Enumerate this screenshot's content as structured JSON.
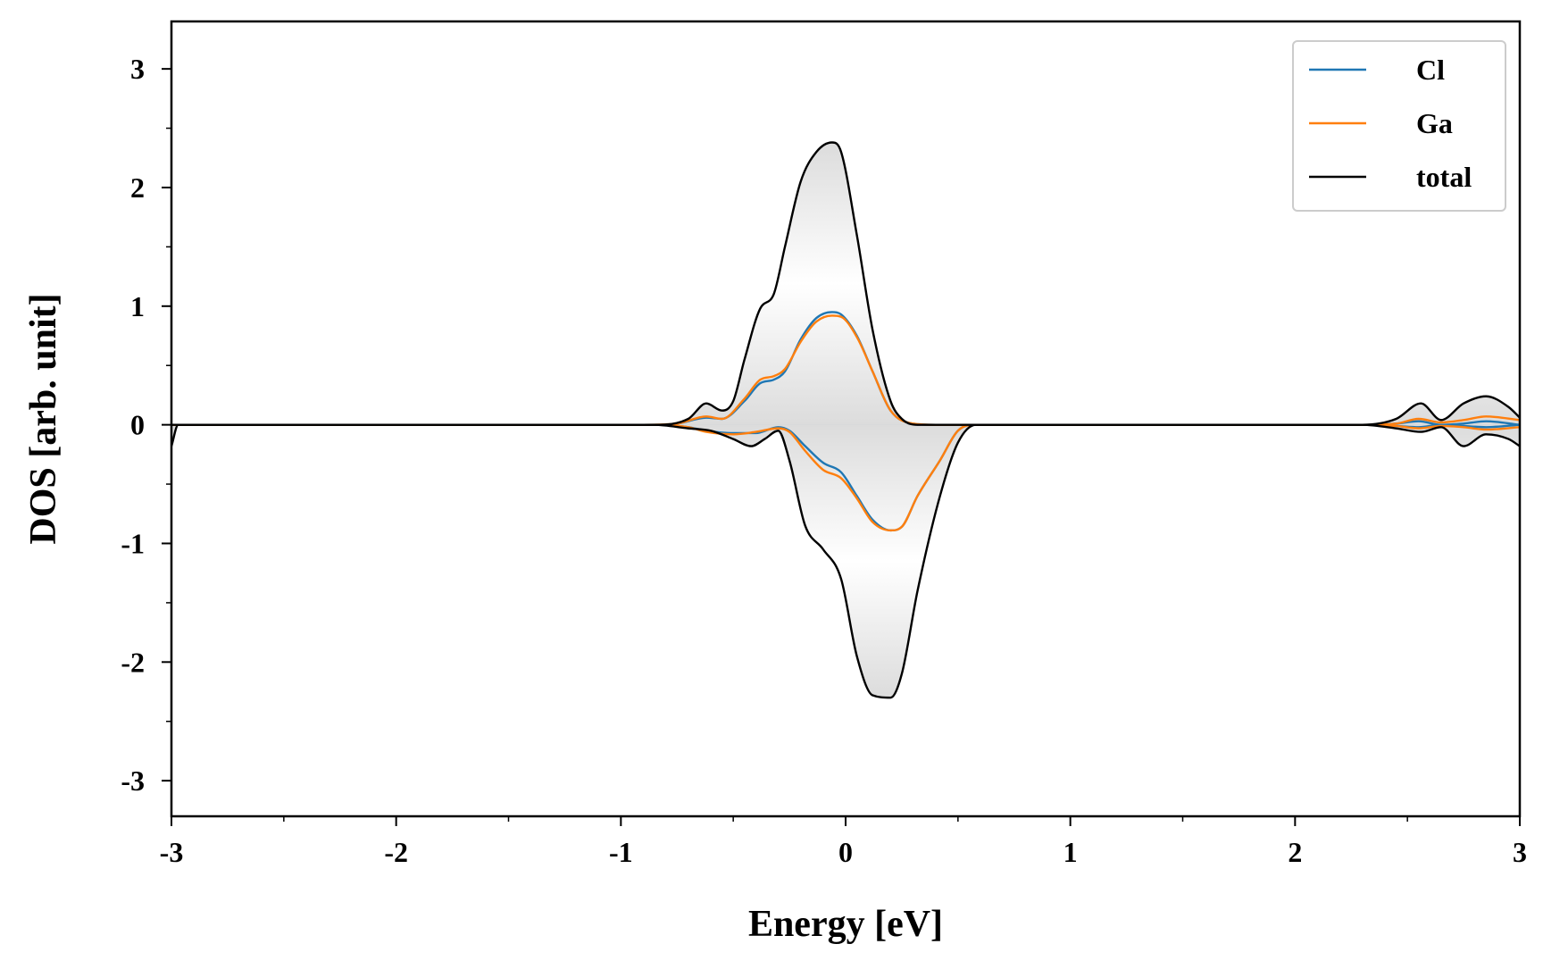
{
  "chart_data": {
    "type": "line",
    "title": "",
    "xlabel": "Energy [eV]",
    "ylabel": "DOS [arb. unit]",
    "xlim": [
      -3,
      3
    ],
    "ylim": [
      -3.3,
      3.4
    ],
    "xticks": [
      -3,
      -2,
      -1,
      0,
      1,
      2,
      3
    ],
    "xtick_labels": [
      "-3",
      "-2",
      "-1",
      "0",
      "1",
      "2",
      "3"
    ],
    "yticks": [
      -3,
      -2,
      -1,
      0,
      1,
      2,
      3
    ],
    "ytick_labels": [
      "-3",
      "-2",
      "-1",
      "0",
      "1",
      "2",
      "3"
    ],
    "grid": false,
    "legend_position": "top-right",
    "shaded_regions": [
      "total",
      "Ga"
    ],
    "series": [
      {
        "name": "Cl",
        "color": "#1f77b4",
        "up": {
          "x": [
            -3.0,
            -0.9,
            -0.75,
            -0.62,
            -0.55,
            -0.45,
            -0.38,
            -0.32,
            -0.27,
            -0.2,
            -0.13,
            -0.06,
            -0.02,
            0.05,
            0.12,
            0.2,
            0.3,
            0.4,
            0.5,
            2.3,
            2.45,
            2.55,
            2.65,
            2.75,
            2.85,
            3.0
          ],
          "y": [
            0,
            0,
            0.01,
            0.06,
            0.05,
            0.2,
            0.35,
            0.38,
            0.45,
            0.72,
            0.9,
            0.95,
            0.93,
            0.75,
            0.45,
            0.12,
            0.01,
            0,
            0,
            0,
            0.01,
            0.03,
            0.0,
            0.01,
            0.03,
            0.0
          ]
        },
        "down": {
          "x": [
            -3.0,
            -0.85,
            -0.7,
            -0.62,
            -0.5,
            -0.4,
            -0.3,
            -0.25,
            -0.18,
            -0.1,
            -0.02,
            0.05,
            0.12,
            0.2,
            0.25,
            0.32,
            0.42,
            0.5,
            0.58,
            2.3,
            2.45,
            2.55,
            2.65,
            2.75,
            2.85,
            3.0
          ],
          "y": [
            0,
            0,
            -0.02,
            -0.05,
            -0.07,
            -0.07,
            -0.02,
            -0.05,
            -0.18,
            -0.32,
            -0.4,
            -0.6,
            -0.8,
            -0.89,
            -0.86,
            -0.6,
            -0.3,
            -0.05,
            0,
            0,
            -0.01,
            -0.02,
            0.0,
            -0.01,
            -0.02,
            0.0
          ]
        }
      },
      {
        "name": "Ga",
        "color": "#ff7f0e",
        "up": {
          "x": [
            -3.0,
            -0.9,
            -0.75,
            -0.62,
            -0.55,
            -0.45,
            -0.38,
            -0.32,
            -0.27,
            -0.2,
            -0.13,
            -0.06,
            -0.02,
            0.05,
            0.12,
            0.2,
            0.3,
            0.4,
            0.5,
            2.3,
            2.45,
            2.55,
            2.65,
            2.75,
            2.85,
            3.0
          ],
          "y": [
            0,
            0,
            0.01,
            0.07,
            0.05,
            0.22,
            0.38,
            0.41,
            0.47,
            0.7,
            0.87,
            0.92,
            0.91,
            0.74,
            0.45,
            0.12,
            0.01,
            0,
            0,
            0,
            0.01,
            0.05,
            0.02,
            0.04,
            0.07,
            0.04
          ]
        },
        "down": {
          "x": [
            -3.0,
            -0.85,
            -0.7,
            -0.62,
            -0.5,
            -0.4,
            -0.3,
            -0.25,
            -0.18,
            -0.1,
            -0.02,
            0.05,
            0.12,
            0.2,
            0.25,
            0.32,
            0.42,
            0.5,
            0.58,
            2.3,
            2.45,
            2.55,
            2.65,
            2.75,
            2.85,
            3.0
          ],
          "y": [
            0,
            0,
            -0.02,
            -0.06,
            -0.08,
            -0.06,
            -0.03,
            -0.06,
            -0.22,
            -0.38,
            -0.45,
            -0.62,
            -0.82,
            -0.89,
            -0.86,
            -0.6,
            -0.3,
            -0.05,
            0,
            0,
            -0.01,
            -0.03,
            -0.01,
            -0.02,
            -0.04,
            -0.02
          ]
        }
      },
      {
        "name": "total",
        "color": "#000000",
        "up": {
          "x": [
            -3.0,
            -0.85,
            -0.7,
            -0.62,
            -0.55,
            -0.5,
            -0.45,
            -0.38,
            -0.32,
            -0.27,
            -0.2,
            -0.13,
            -0.06,
            -0.02,
            0.05,
            0.12,
            0.2,
            0.25,
            0.32,
            0.4,
            0.5,
            2.3,
            2.45,
            2.56,
            2.65,
            2.75,
            2.85,
            2.95,
            3.0
          ],
          "y": [
            0,
            0,
            0.05,
            0.18,
            0.12,
            0.2,
            0.55,
            0.98,
            1.1,
            1.5,
            2.05,
            2.3,
            2.38,
            2.3,
            1.6,
            0.8,
            0.2,
            0.05,
            0.0,
            0.0,
            0.0,
            0.0,
            0.05,
            0.18,
            0.04,
            0.18,
            0.24,
            0.15,
            0.06
          ]
        },
        "down": {
          "x": [
            -3.0,
            -2.97,
            -0.85,
            -0.7,
            -0.6,
            -0.5,
            -0.42,
            -0.36,
            -0.3,
            -0.25,
            -0.18,
            -0.1,
            -0.02,
            0.05,
            0.12,
            0.2,
            0.25,
            0.32,
            0.42,
            0.5,
            0.58,
            2.3,
            2.45,
            2.56,
            2.65,
            2.75,
            2.85,
            2.95,
            3.0
          ],
          "y": [
            -0.18,
            0,
            0,
            -0.03,
            -0.05,
            -0.12,
            -0.18,
            -0.12,
            -0.05,
            -0.3,
            -0.85,
            -1.05,
            -1.3,
            -1.95,
            -2.28,
            -2.3,
            -2.1,
            -1.4,
            -0.6,
            -0.15,
            0,
            0,
            -0.03,
            -0.06,
            -0.02,
            -0.18,
            -0.08,
            -0.12,
            -0.18
          ]
        }
      }
    ]
  }
}
